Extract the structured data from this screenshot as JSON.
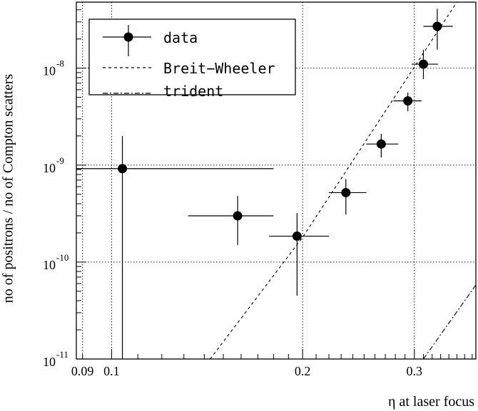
{
  "chart_data": {
    "type": "scatter",
    "title": "",
    "xlabel": "η at laser focus",
    "ylabel": "no of positrons / no of Compton scatters",
    "x_scale": "log",
    "y_scale": "log",
    "xlim": [
      0.088,
      0.375
    ],
    "ylim": [
      1e-11,
      4.8e-08
    ],
    "grid": true,
    "x_ticks": [
      {
        "value": 0.09,
        "label": "0.09"
      },
      {
        "value": 0.1,
        "label": "0.1"
      },
      {
        "value": 0.2,
        "label": "0.2"
      },
      {
        "value": 0.3,
        "label": "0.3"
      }
    ],
    "y_ticks": [
      {
        "value": 1e-11,
        "label": "10",
        "exp": "-11"
      },
      {
        "value": 1e-10,
        "label": "10",
        "exp": "-10"
      },
      {
        "value": 1e-09,
        "label": "10",
        "exp": "-9"
      },
      {
        "value": 1e-08,
        "label": "10",
        "exp": "-8"
      }
    ],
    "legend": {
      "position": "top-left",
      "entries": [
        "data",
        "Breit−Wheeler",
        "trident"
      ]
    },
    "series": [
      {
        "name": "data",
        "style": "points-with-errorbars",
        "points": [
          {
            "x": 0.104,
            "y": 9.2e-10,
            "xerr": [
              0.088,
              0.18
            ],
            "yerr": [
              1e-11,
              2e-09
            ]
          },
          {
            "x": 0.158,
            "y": 3e-10,
            "xerr": [
              0.132,
              0.18
            ],
            "yerr": [
              1.5e-10,
              4.8e-10
            ]
          },
          {
            "x": 0.196,
            "y": 1.85e-10,
            "xerr": [
              0.177,
              0.22
            ],
            "yerr": [
              4.5e-11,
              3.2e-10
            ]
          },
          {
            "x": 0.234,
            "y": 5.2e-10,
            "xerr": [
              0.22,
              0.252
            ],
            "yerr": [
              3.1e-10,
              7.2e-10
            ]
          },
          {
            "x": 0.266,
            "y": 1.65e-09,
            "xerr": [
              0.252,
              0.283
            ],
            "yerr": [
              1.2e-09,
              2.1e-09
            ]
          },
          {
            "x": 0.293,
            "y": 4.6e-09,
            "xerr": [
              0.278,
              0.308
            ],
            "yerr": [
              3.6e-09,
              5.6e-09
            ]
          },
          {
            "x": 0.31,
            "y": 1.1e-08,
            "xerr": [
              0.297,
              0.327
            ],
            "yerr": [
              7.7e-09,
              1.55e-08
            ]
          },
          {
            "x": 0.326,
            "y": 2.7e-08,
            "xerr": [
              0.31,
              0.345
            ],
            "yerr": [
              1.55e-08,
              4.1e-08
            ]
          }
        ]
      },
      {
        "name": "Breit−Wheeler",
        "style": "dashed",
        "points": [
          [
            0.143,
            1e-11
          ],
          [
            0.2,
            1.8e-10
          ],
          [
            0.35,
            4.8e-08
          ]
        ]
      },
      {
        "name": "trident",
        "style": "dash-dot",
        "points": [
          [
            0.31,
            1e-11
          ],
          [
            0.375,
            5.8e-11
          ]
        ]
      }
    ]
  }
}
